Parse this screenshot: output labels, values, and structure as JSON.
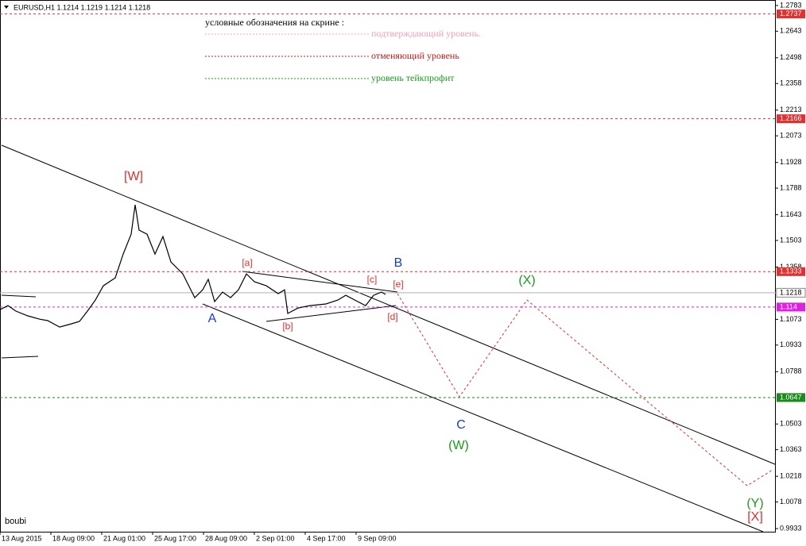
{
  "chart_data": {
    "type": "line",
    "title": "EURUSD,H1  1.1214 1.1219 1.1214 1.1218",
    "legend_title": "условные обозначения на скрине :",
    "legend_notes": [
      {
        "text": "подтверждающий уровень.",
        "color": "#f4a0b8"
      },
      {
        "text": "отменяющий уровень",
        "color": "#d01818"
      },
      {
        "text": "уровень тейкпрофит",
        "color": "#1a9a1a"
      }
    ],
    "author": "boubi",
    "color": "#000000",
    "x": [
      0,
      2.5,
      5,
      8.75,
      12.5,
      15,
      18.75,
      22.5,
      25,
      27.5,
      30,
      32.5,
      36.25,
      38.75,
      41.25,
      42.5,
      43.75,
      46.25,
      48.75,
      51.25,
      53.75,
      57.5,
      61.25,
      63.75,
      65.5,
      67.5,
      70,
      72.5,
      75,
      77.5,
      80,
      83.75,
      87.5,
      89.5,
      90.5,
      93.75,
      97.5,
      102.5,
      106.25,
      108.75,
      112.5,
      115,
      117.5,
      120,
      121.25
    ],
    "values": [
      1.1126,
      1.1148,
      1.1118,
      1.1092,
      1.1074,
      1.1066,
      1.1031,
      1.1049,
      1.1062,
      1.1118,
      1.1178,
      1.1256,
      1.1299,
      1.1429,
      1.1537,
      1.1697,
      1.1559,
      1.1537,
      1.1429,
      1.1524,
      1.1386,
      1.1321,
      1.1191,
      1.1234,
      1.1291,
      1.117,
      1.1222,
      1.1191,
      1.1234,
      1.1321,
      1.1278,
      1.1256,
      1.1213,
      1.1234,
      1.1105,
      1.1135,
      1.1148,
      1.1157,
      1.1178,
      1.1204,
      1.117,
      1.1148,
      1.1204,
      1.1222,
      1.1209
    ],
    "xlim": [
      0,
      244
    ],
    "xticks": [
      {
        "value": 0,
        "label": "13 Aug 2015"
      },
      {
        "value": 16,
        "label": "18 Aug 09:00"
      },
      {
        "value": 32,
        "label": "21 Aug 01:00"
      },
      {
        "value": 48,
        "label": "25 Aug 17:00"
      },
      {
        "value": 64,
        "label": "28 Aug 09:00"
      },
      {
        "value": 80,
        "label": "2 Sep 01:00"
      },
      {
        "value": 96,
        "label": "4 Sep 17:00"
      },
      {
        "value": 112,
        "label": "9 Sep 09:00"
      }
    ],
    "ylim": [
      0.9916,
      1.2813
    ],
    "yticks": [
      1.2783,
      1.2643,
      1.2498,
      1.2358,
      1.2213,
      1.2073,
      1.1928,
      1.1788,
      1.1643,
      1.1503,
      1.1358,
      1.1073,
      1.0933,
      1.0788,
      1.0503,
      1.0363,
      1.0218,
      1.0078,
      0.9933
    ],
    "levels": [
      {
        "value": 1.2737,
        "color": "#e03030"
      },
      {
        "value": 1.2166,
        "color": "#e03030"
      },
      {
        "value": 1.1333,
        "color": "#e03030"
      },
      {
        "value": 1.114,
        "color": "#e020e0"
      },
      {
        "value": 1.0647,
        "color": "#1a8a1a"
      }
    ],
    "current_price": 1.1218,
    "annotations": [
      {
        "text": "[W]",
        "color": "#e03030"
      },
      {
        "text": "[a]",
        "color": "#e03030"
      },
      {
        "text": "[c]",
        "color": "#e03030"
      },
      {
        "text": "[e]",
        "color": "#e03030"
      },
      {
        "text": "B",
        "color": "#1a3adb"
      },
      {
        "text": "(X)",
        "color": "#1a9a1a"
      },
      {
        "text": "A",
        "color": "#1a3adb"
      },
      {
        "text": "[b]",
        "color": "#e03030"
      },
      {
        "text": "[d]",
        "color": "#e03030"
      },
      {
        "text": "C",
        "color": "#1a3adb"
      },
      {
        "text": "(W)",
        "color": "#1a9a1a"
      },
      {
        "text": "(Y)",
        "color": "#1a9a1a"
      },
      {
        "text": "[X]",
        "color": "#e03030"
      }
    ]
  }
}
